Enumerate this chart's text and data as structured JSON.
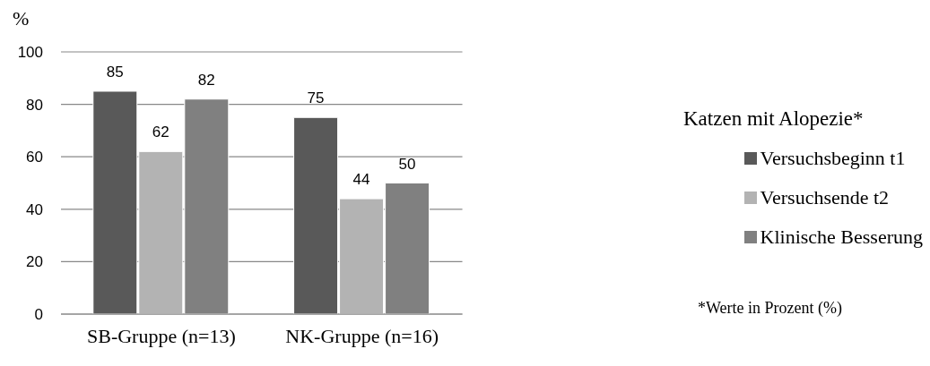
{
  "chart_data": {
    "type": "bar",
    "ylabel": "%",
    "legend_title": "Katzen mit Alopezie*",
    "annotations": [
      "*Werte in Prozent (%)"
    ],
    "categories": [
      "SB-Gruppe (n=13)",
      "NK-Gruppe (n=16)"
    ],
    "series": [
      {
        "name": "Versuchsbeginn t1",
        "color": "#595959",
        "values": [
          85,
          75
        ]
      },
      {
        "name": "Versuchsende t2",
        "color": "#b3b3b3",
        "values": [
          62,
          44
        ]
      },
      {
        "name": "Klinische Besserung",
        "color": "#808080",
        "values": [
          82,
          50
        ]
      }
    ],
    "ylim": [
      0,
      100
    ],
    "yticks": [
      0,
      20,
      40,
      60,
      80,
      100
    ],
    "grid": "y",
    "legend": "right",
    "data_labels": true
  }
}
